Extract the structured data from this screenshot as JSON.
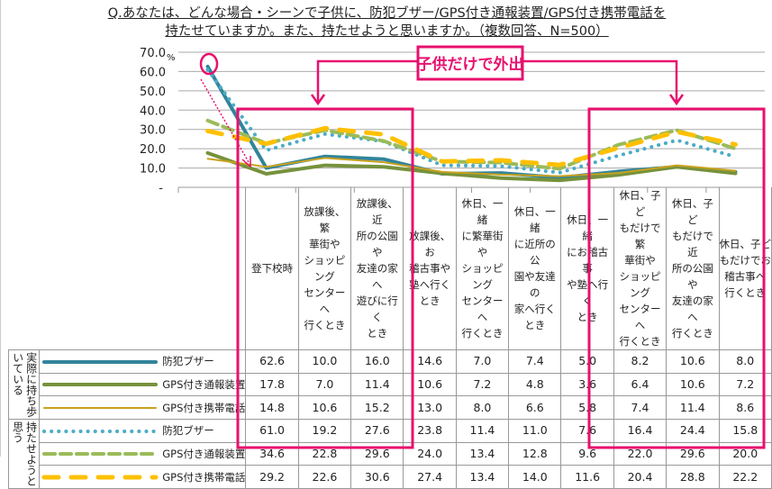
{
  "title": {
    "line1": "Q.あなたは、どんな場合・シーンで子供に、防犯ブザー/GPS付き通報装置/GPS付き携帯電話を",
    "line2": "持たせていますか。また、持たせようと思いますか。（複数回答、N=500）"
  },
  "callout": "子供だけで外出",
  "chart_data": {
    "type": "line",
    "yunit": "%",
    "ylim": [
      0,
      70
    ],
    "yticks": [
      "-",
      "10.0",
      "20.0",
      "30.0",
      "40.0",
      "50.0",
      "60.0",
      "70.0"
    ],
    "grid": true,
    "categories": [
      "登下校時",
      "放課後、繁華街やショッピングセンターへ行くとき",
      "放課後、近所の公園や友達の家へ遊びに行くとき",
      "放課後、お稽古事や塾へ行くとき",
      "休日、一緒に繁華街やショッピングセンターへ行くとき",
      "休日、一緒に近所の公園や友達の家へ行くとき",
      "休日、一緒にお稽古事や塾へ行くとき",
      "休日、子どもだけで繁華街やショッピングセンターへ行くとき",
      "休日、子どもだけで近所の公園や友達の家へ行くとき",
      "休日、子どもだけでお稽古事へ行くとき"
    ],
    "category_lines": [
      [
        "登下校時"
      ],
      [
        "放課後、繁",
        "華街や",
        "ショッピング",
        "センターへ",
        "行くとき"
      ],
      [
        "放課後、近",
        "所の公園や",
        "友達の家へ",
        "遊びに行く",
        "とき"
      ],
      [
        "放課後、お",
        "稽古事や",
        "塾へ行くとき"
      ],
      [
        "休日、一緒",
        "に繁華街や",
        "ショッピング",
        "センターへ",
        "行くとき"
      ],
      [
        "休日、一緒",
        "に近所の公",
        "園や友達の",
        "家へ行くとき"
      ],
      [
        "休日、一緒",
        "にお稽古事",
        "や塾へ行く",
        "とき"
      ],
      [
        "休日、子ど",
        "もだけで繁",
        "華街や",
        "ショッピング",
        "センターへ",
        "行くとき"
      ],
      [
        "休日、子ど",
        "もだけで近",
        "所の公園や",
        "友達の家へ",
        "行くとき"
      ],
      [
        "休日、子ど",
        "もだけでお",
        "稽古事へ",
        "行くとき"
      ]
    ],
    "groups": [
      {
        "label": "実際に持ち歩いている"
      },
      {
        "label": "持たせようと思う"
      }
    ],
    "series": [
      {
        "name": "防犯ブザー",
        "group": 0,
        "color": "#31849B",
        "style": "solid-thick",
        "values": [
          62.6,
          10.0,
          16.0,
          14.6,
          7.0,
          7.4,
          5.0,
          8.2,
          10.6,
          8.0
        ]
      },
      {
        "name": "GPS付き通報装置",
        "group": 0,
        "color": "#76923C",
        "style": "solid-thick",
        "values": [
          17.8,
          7.0,
          11.4,
          10.6,
          7.2,
          4.8,
          3.6,
          6.4,
          10.6,
          7.2
        ]
      },
      {
        "name": "GPS付き携帯電話",
        "group": 0,
        "color": "#C9A21E",
        "style": "solid-thin",
        "values": [
          14.8,
          10.6,
          15.2,
          13.0,
          8.0,
          6.6,
          5.8,
          7.4,
          11.4,
          8.6
        ]
      },
      {
        "name": "防犯ブザー",
        "group": 1,
        "color": "#4BACC6",
        "style": "dotted",
        "values": [
          61.0,
          19.2,
          27.6,
          23.8,
          11.4,
          11.0,
          7.6,
          16.4,
          24.4,
          15.8
        ]
      },
      {
        "name": "GPS付き通報装置",
        "group": 1,
        "color": "#9BBB59",
        "style": "dashed",
        "values": [
          34.6,
          22.8,
          29.6,
          24.0,
          13.4,
          12.8,
          9.6,
          22.0,
          29.6,
          20.0
        ]
      },
      {
        "name": "GPS付き携帯電話",
        "group": 1,
        "color": "#FFC000",
        "style": "long-dashed",
        "values": [
          29.2,
          22.6,
          30.6,
          27.4,
          13.4,
          14.0,
          11.6,
          20.4,
          28.8,
          22.2
        ]
      }
    ]
  },
  "highlight_color": "#E8106E"
}
